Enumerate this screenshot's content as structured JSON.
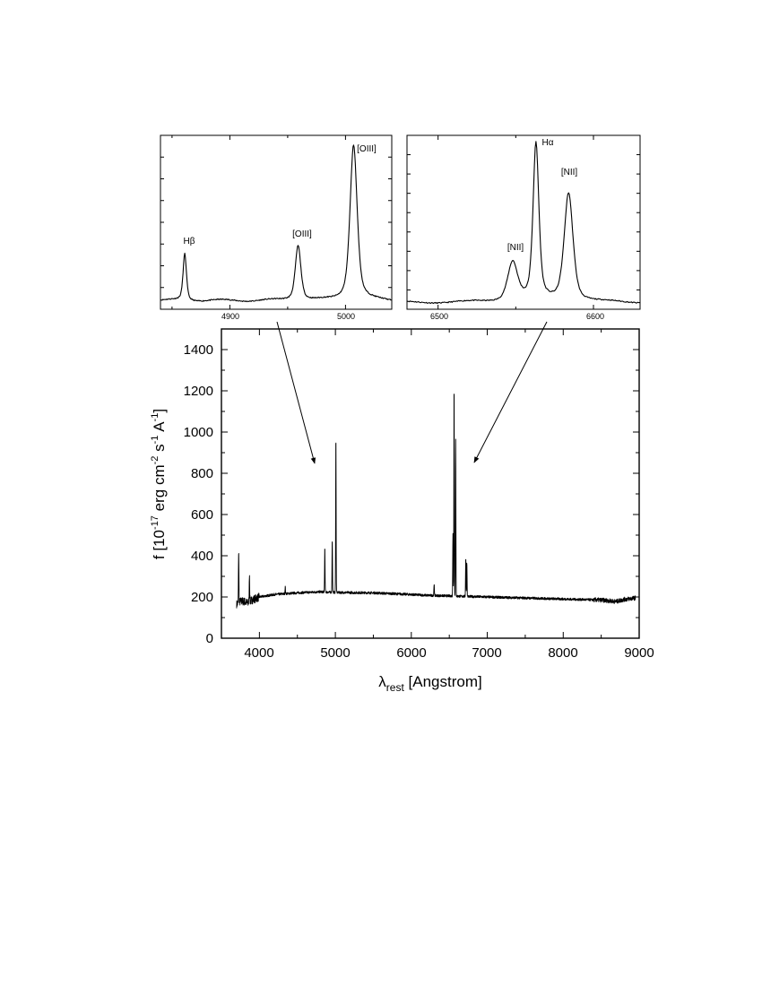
{
  "chart_data": [
    {
      "id": "main",
      "type": "line",
      "xlabel": "λ",
      "xlabel_sub": "rest",
      "xlabel_rest": " [Angstrom]",
      "ylabel_parts": [
        "f [10",
        "-17",
        " erg cm",
        "-2",
        " s",
        "-1",
        " A",
        "-1",
        "]"
      ],
      "xlim": [
        3500,
        9000
      ],
      "ylim": [
        0,
        1500
      ],
      "xticks": [
        4000,
        5000,
        6000,
        7000,
        8000,
        9000
      ],
      "yticks": [
        0,
        200,
        400,
        600,
        800,
        1000,
        1200,
        1400
      ],
      "xtick_labels": [
        "4000",
        "5000",
        "6000",
        "7000",
        "8000",
        "9000"
      ],
      "ytick_labels": [
        "0",
        "200",
        "400",
        "600",
        "800",
        "1000",
        "1200",
        "1400"
      ],
      "continuum": [
        [
          3700,
          165
        ],
        [
          3760,
          180
        ],
        [
          3800,
          178
        ],
        [
          3850,
          170
        ],
        [
          3900,
          185
        ],
        [
          4000,
          200
        ],
        [
          4200,
          212
        ],
        [
          4500,
          220
        ],
        [
          4800,
          225
        ],
        [
          5000,
          222
        ],
        [
          5500,
          220
        ],
        [
          6000,
          212
        ],
        [
          6200,
          208
        ],
        [
          6500,
          205
        ],
        [
          7000,
          200
        ],
        [
          7500,
          195
        ],
        [
          8000,
          190
        ],
        [
          8500,
          185
        ],
        [
          8700,
          178
        ],
        [
          8800,
          188
        ],
        [
          8950,
          195
        ]
      ],
      "emission_lines": [
        {
          "x": 3727,
          "peak": 430
        },
        {
          "x": 3869,
          "peak": 315
        },
        {
          "x": 4340,
          "peak": 250
        },
        {
          "x": 4861,
          "peak": 440
        },
        {
          "x": 4959,
          "peak": 480
        },
        {
          "x": 5007,
          "peak": 985
        },
        {
          "x": 6300,
          "peak": 265
        },
        {
          "x": 6548,
          "peak": 505
        },
        {
          "x": 6563,
          "peak": 1245
        },
        {
          "x": 6584,
          "peak": 965
        },
        {
          "x": 6717,
          "peak": 395
        },
        {
          "x": 6731,
          "peak": 370
        }
      ],
      "arrows": [
        {
          "from": [
            4040,
            1510
          ],
          "to": [
            4860,
            840
          ]
        },
        {
          "from": [
            6750,
            1510
          ],
          "to": [
            6760,
            840
          ]
        }
      ]
    },
    {
      "id": "inset-hbeta-oiii",
      "type": "line",
      "xlim": [
        4840,
        5040
      ],
      "ylim": [
        0,
        1
      ],
      "xticks": [
        4900,
        5000
      ],
      "xtick_labels": [
        "4900",
        "5000"
      ],
      "yticks_count": 7,
      "baseline": 0.05,
      "lines": [
        {
          "x": 4861,
          "peak": 0.27,
          "width": 1.8
        },
        {
          "x": 4959,
          "peak": 0.32,
          "width": 3.0
        },
        {
          "x": 5007,
          "peak": 0.9,
          "width": 3.8
        }
      ],
      "annotations": [
        {
          "text": "Hβ",
          "x": 4861,
          "y": 0.33
        },
        {
          "text": "[OIII]",
          "x": 4959,
          "y": 0.4
        },
        {
          "text": "[OIII]",
          "x": 5007,
          "y": 0.96
        }
      ]
    },
    {
      "id": "inset-halpha-nii",
      "type": "line",
      "xlim": [
        6480,
        6630
      ],
      "ylim": [
        0,
        1
      ],
      "xticks": [
        6500,
        6600
      ],
      "xtick_labels": [
        "6500",
        "6600"
      ],
      "yticks_count": 8,
      "baseline": 0.04,
      "lines": [
        {
          "x": 6548,
          "peak": 0.23,
          "width": 4.0
        },
        {
          "x": 6563,
          "peak": 0.9,
          "width": 2.3
        },
        {
          "x": 6584,
          "peak": 0.63,
          "width": 3.5
        }
      ],
      "annotations": [
        {
          "text": "[NII]",
          "x": 6548,
          "y": 0.33
        },
        {
          "text": "Hα",
          "x": 6563,
          "y": 0.97
        },
        {
          "text": "[NII]",
          "x": 6584,
          "y": 0.78
        }
      ]
    }
  ]
}
